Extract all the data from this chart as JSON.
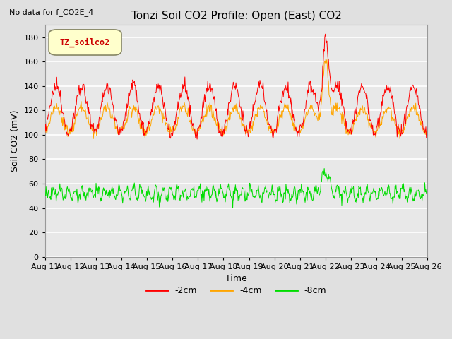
{
  "title": "Tonzi Soil CO2 Profile: Open (East) CO2",
  "subtitle": "No data for f_CO2E_4",
  "xlabel": "Time",
  "ylabel": "Soil CO2 (mV)",
  "ylim": [
    0,
    190
  ],
  "yticks": [
    0,
    20,
    40,
    60,
    80,
    100,
    120,
    140,
    160,
    180
  ],
  "xtick_labels": [
    "Aug 11",
    "Aug 12",
    "Aug 13",
    "Aug 14",
    "Aug 15",
    "Aug 16",
    "Aug 17",
    "Aug 18",
    "Aug 19",
    "Aug 20",
    "Aug 21",
    "Aug 22",
    "Aug 23",
    "Aug 24",
    "Aug 25",
    "Aug 26"
  ],
  "legend_label": "TZ_soilco2",
  "line_labels": [
    "-2cm",
    "-4cm",
    "-8cm"
  ],
  "line_colors": [
    "#ff0000",
    "#ffa500",
    "#00dd00"
  ],
  "fig_bg_color": "#e0e0e0",
  "plot_bg_color": "#e8e8e8",
  "grid_color": "#ffffff",
  "title_fontsize": 11,
  "axis_label_fontsize": 9,
  "tick_fontsize": 8,
  "n_points": 720
}
